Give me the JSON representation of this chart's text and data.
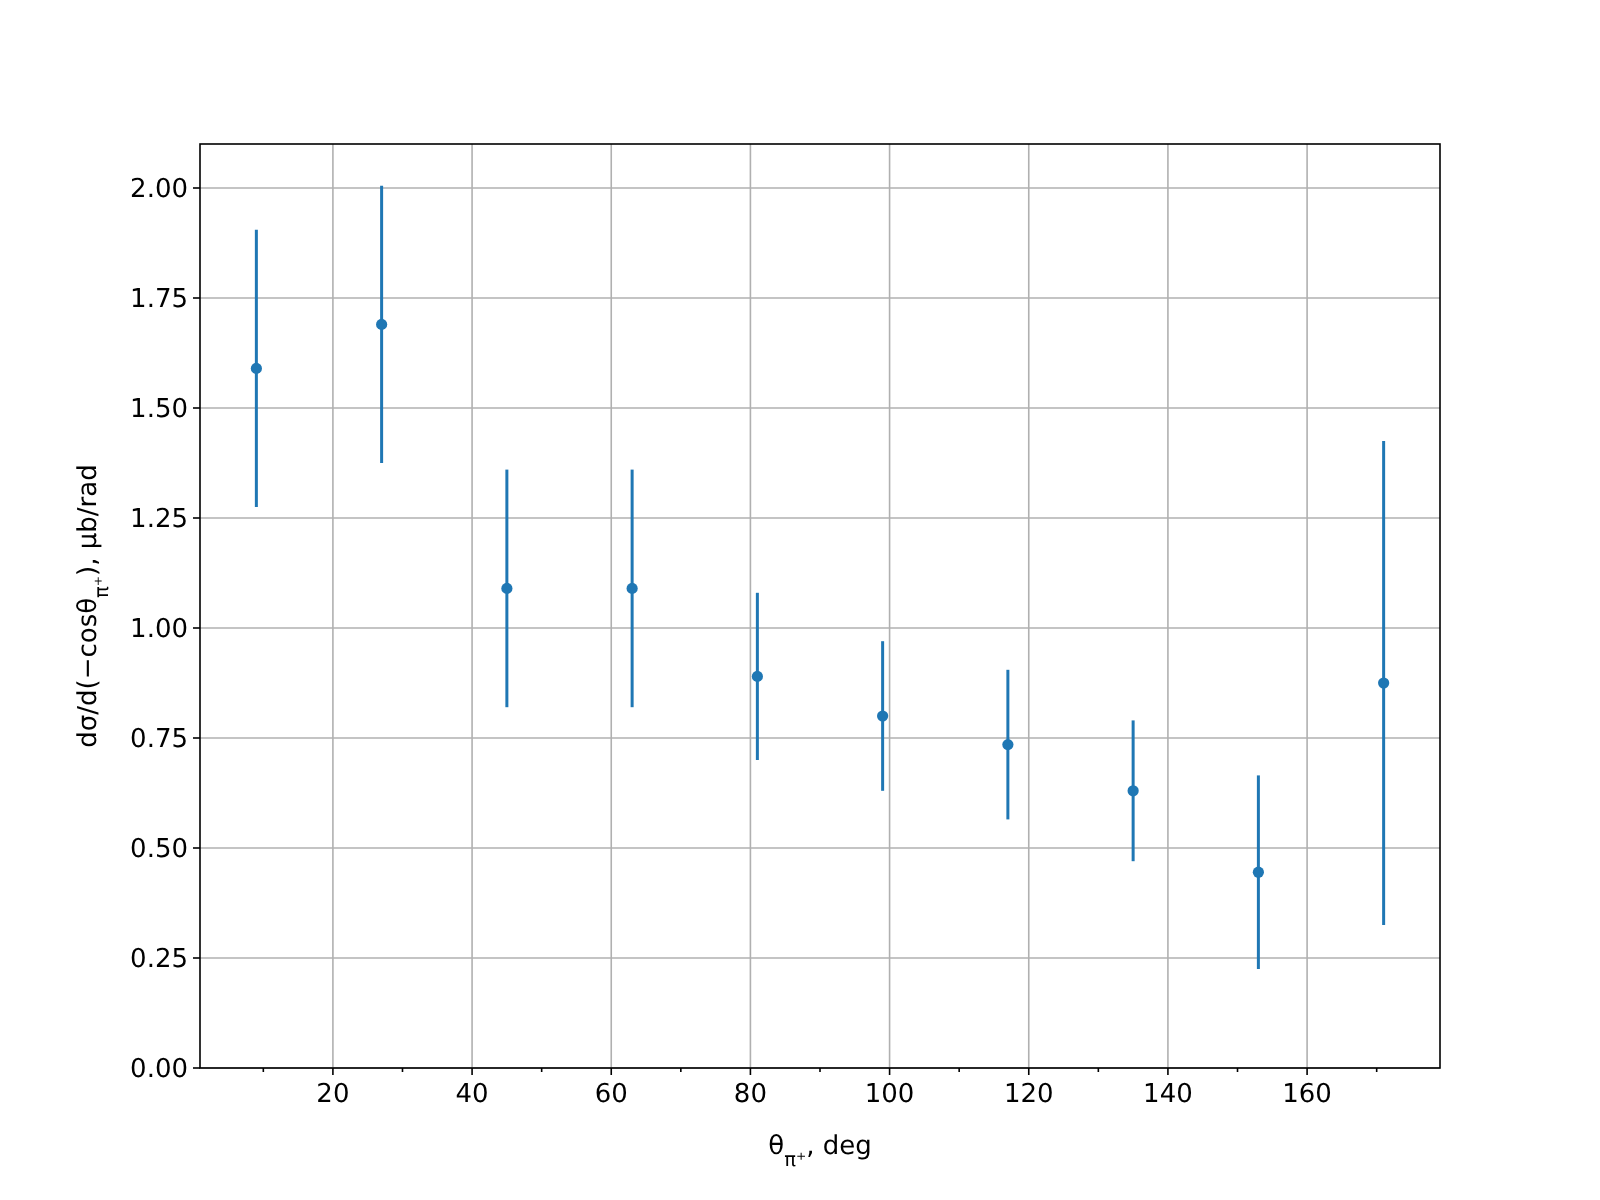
{
  "chart_data": {
    "type": "scatter",
    "xlabel": "θ$_{π⁺}$, deg",
    "ylabel": "dσ/d(−cosθ$_{π⁺}$), μb/rad",
    "x": [
      9,
      27,
      45,
      63,
      81,
      99,
      117,
      135,
      153,
      171
    ],
    "series": [
      {
        "color": "#1f77b4",
        "values": [
          1.59,
          1.69,
          1.09,
          1.09,
          0.89,
          0.8,
          0.735,
          0.63,
          0.445,
          0.875
        ],
        "errors": [
          0.315,
          0.315,
          0.27,
          0.27,
          0.19,
          0.17,
          0.17,
          0.16,
          0.22,
          0.55
        ]
      }
    ],
    "xlim": [
      0.9,
      179.1
    ],
    "ylim": [
      0,
      2.1
    ],
    "xticks": [
      {
        "value": 10,
        "label": null
      },
      20,
      {
        "value": 30,
        "label": null
      },
      40,
      {
        "value": 50,
        "label": null
      },
      60,
      {
        "value": 70,
        "label": null
      },
      80,
      {
        "value": 90,
        "label": null
      },
      100,
      {
        "value": 110,
        "label": null
      },
      120,
      {
        "value": 130,
        "label": null
      },
      140,
      {
        "value": 150,
        "label": null
      },
      160,
      {
        "value": 170,
        "label": null
      }
    ],
    "yticks": [
      {
        "value": 0,
        "label": "0.00"
      },
      {
        "value": 0.25,
        "label": "0.25"
      },
      {
        "value": 0.5,
        "label": "0.50"
      },
      {
        "value": 0.75,
        "label": "0.75"
      },
      {
        "value": 1,
        "label": "1.00"
      },
      {
        "value": 1.25,
        "label": "1.25"
      },
      {
        "value": 1.5,
        "label": "1.50"
      },
      {
        "value": 1.75,
        "label": "1.75"
      },
      {
        "value": 2,
        "label": "2.00"
      }
    ],
    "grid": true,
    "marker": "circle"
  }
}
